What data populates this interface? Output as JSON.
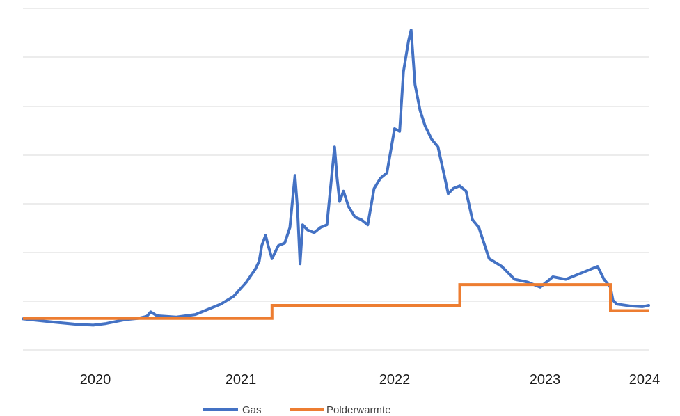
{
  "chart_data": {
    "type": "line",
    "title": "",
    "xlabel": "",
    "ylabel": "",
    "x_tick_labels": [
      "2020",
      "2021",
      "2022",
      "2023",
      "2024"
    ],
    "y_tick_labels_shown": false,
    "grid": "horizontal",
    "legend_position": "bottom",
    "series": [
      {
        "name": "Gas",
        "color": "#4472c4",
        "points": [
          [
            2019.55,
            0.98
          ],
          [
            2019.8,
            0.85
          ],
          [
            2019.95,
            0.78
          ],
          [
            2020.1,
            0.74
          ],
          [
            2020.2,
            0.8
          ],
          [
            2020.35,
            0.95
          ],
          [
            2020.45,
            1.0
          ],
          [
            2020.52,
            1.08
          ],
          [
            2020.55,
            1.25
          ],
          [
            2020.6,
            1.1
          ],
          [
            2020.75,
            1.05
          ],
          [
            2020.9,
            1.15
          ],
          [
            2021.0,
            1.35
          ],
          [
            2021.1,
            1.55
          ],
          [
            2021.2,
            1.85
          ],
          [
            2021.3,
            2.4
          ],
          [
            2021.37,
            2.9
          ],
          [
            2021.4,
            3.2
          ],
          [
            2021.42,
            3.8
          ],
          [
            2021.45,
            4.2
          ],
          [
            2021.47,
            3.8
          ],
          [
            2021.5,
            3.3
          ],
          [
            2021.55,
            3.8
          ],
          [
            2021.6,
            3.9
          ],
          [
            2021.64,
            4.5
          ],
          [
            2021.66,
            5.5
          ],
          [
            2021.68,
            6.5
          ],
          [
            2021.7,
            5.2
          ],
          [
            2021.72,
            3.1
          ],
          [
            2021.74,
            4.6
          ],
          [
            2021.78,
            4.4
          ],
          [
            2021.83,
            4.3
          ],
          [
            2021.88,
            4.5
          ],
          [
            2021.93,
            4.6
          ],
          [
            2021.97,
            6.6
          ],
          [
            2021.99,
            7.6
          ],
          [
            2022.01,
            6.4
          ],
          [
            2022.03,
            5.5
          ],
          [
            2022.06,
            5.9
          ],
          [
            2022.1,
            5.3
          ],
          [
            2022.15,
            4.9
          ],
          [
            2022.2,
            4.8
          ],
          [
            2022.25,
            4.6
          ],
          [
            2022.3,
            6.0
          ],
          [
            2022.35,
            6.4
          ],
          [
            2022.4,
            6.6
          ],
          [
            2022.46,
            8.3
          ],
          [
            2022.5,
            8.2
          ],
          [
            2022.53,
            10.5
          ],
          [
            2022.57,
            11.7
          ],
          [
            2022.59,
            12.1
          ],
          [
            2022.62,
            10.0
          ],
          [
            2022.66,
            9.0
          ],
          [
            2022.7,
            8.4
          ],
          [
            2022.75,
            7.9
          ],
          [
            2022.8,
            7.6
          ],
          [
            2022.85,
            6.5
          ],
          [
            2022.88,
            5.8
          ],
          [
            2022.92,
            6.0
          ],
          [
            2022.97,
            6.1
          ],
          [
            2023.02,
            5.9
          ],
          [
            2023.07,
            4.8
          ],
          [
            2023.12,
            4.5
          ],
          [
            2023.2,
            3.3
          ],
          [
            2023.3,
            3.0
          ],
          [
            2023.4,
            2.5
          ],
          [
            2023.5,
            2.4
          ],
          [
            2023.6,
            2.2
          ],
          [
            2023.7,
            2.6
          ],
          [
            2023.8,
            2.5
          ],
          [
            2023.9,
            2.7
          ],
          [
            2024.0,
            2.9
          ],
          [
            2024.05,
            3.0
          ],
          [
            2024.1,
            2.5
          ],
          [
            2024.15,
            2.2
          ],
          [
            2024.17,
            1.7
          ],
          [
            2024.2,
            1.55
          ],
          [
            2024.3,
            1.48
          ],
          [
            2024.4,
            1.45
          ],
          [
            2024.45,
            1.5
          ]
        ]
      },
      {
        "name": "Polderwarmte",
        "color": "#ed7d31",
        "points": [
          [
            2019.55,
            1.0
          ],
          [
            2021.5,
            1.0
          ],
          [
            2021.5,
            1.5
          ],
          [
            2022.97,
            1.5
          ],
          [
            2022.97,
            2.3
          ],
          [
            2024.15,
            2.3
          ],
          [
            2024.15,
            1.3
          ],
          [
            2024.45,
            1.3
          ]
        ]
      }
    ],
    "xlim": [
      2019.55,
      2024.45
    ],
    "ylim": [
      0,
      12.8
    ]
  }
}
